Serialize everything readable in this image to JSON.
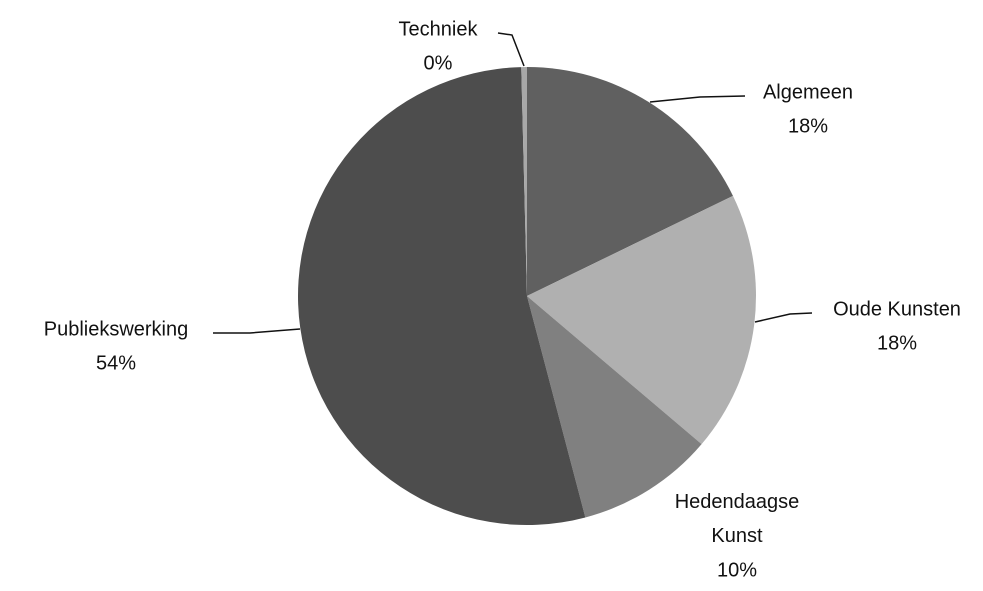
{
  "chart_data": {
    "type": "pie",
    "categories": [
      "Algemeen",
      "Oude Kunsten",
      "Hedendaagse Kunst",
      "Publiekswerking",
      "Techniek"
    ],
    "values": [
      17.8,
      18.4,
      9.7,
      53.7,
      0.4
    ],
    "value_labels": [
      "18%",
      "18%",
      "10%",
      "54%",
      "0%"
    ],
    "colors": [
      "#606060",
      "#b0b0b0",
      "#808080",
      "#4d4d4d",
      "#a8a8a8"
    ]
  }
}
